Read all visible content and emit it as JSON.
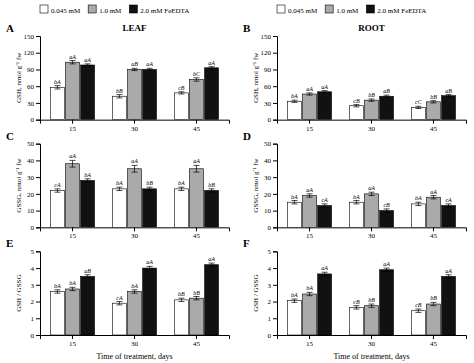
{
  "chart_data": [
    {
      "type": "bar",
      "title": "LEAF",
      "annotations": [
        "A"
      ],
      "ylabel": "GSH, nmol g⁻¹ fw",
      "categories": [
        "15",
        "30",
        "45"
      ],
      "ylim": [
        0,
        150
      ],
      "yticks": [
        0,
        30,
        60,
        90,
        120,
        150
      ],
      "grid": false,
      "legend": "top",
      "series": [
        {
          "name": "0.045 mM",
          "color": "white",
          "values": [
            58,
            42,
            48
          ],
          "errors": [
            3,
            3,
            2
          ],
          "annotations": [
            "bA",
            "bB",
            "cB"
          ]
        },
        {
          "name": "1.0 mM",
          "color": "#aaaaaa",
          "values": [
            103,
            90,
            72
          ],
          "errors": [
            3,
            2,
            3
          ],
          "annotations": [
            "aA",
            "aB",
            "bC"
          ]
        },
        {
          "name": "2.0 mM FeEDTA",
          "color": "#111111",
          "values": [
            98,
            90,
            93
          ],
          "errors": [
            2,
            2,
            2
          ],
          "annotations": [
            "aA",
            "aA",
            "aA"
          ]
        }
      ]
    },
    {
      "type": "bar",
      "title": "ROOT",
      "annotations": [
        "B"
      ],
      "ylabel": "GSH, nmol g⁻¹ fw",
      "categories": [
        "15",
        "30",
        "45"
      ],
      "ylim": [
        0,
        150
      ],
      "yticks": [
        0,
        30,
        60,
        90,
        120,
        150
      ],
      "grid": false,
      "legend": "top",
      "series": [
        {
          "name": "0.045 mM",
          "color": "white",
          "values": [
            33,
            25,
            22
          ],
          "errors": [
            2,
            2,
            2
          ],
          "annotations": [
            "bA",
            "cB",
            "cC"
          ]
        },
        {
          "name": "1.0 mM",
          "color": "#aaaaaa",
          "values": [
            46,
            35,
            32
          ],
          "errors": [
            2,
            2,
            2
          ],
          "annotations": [
            "aA",
            "bB",
            "bB"
          ]
        },
        {
          "name": "2.0 mM FeEDTA",
          "color": "#111111",
          "values": [
            50,
            42,
            43
          ],
          "errors": [
            2,
            2,
            2
          ],
          "annotations": [
            "aA",
            "aB",
            "aB"
          ]
        }
      ]
    },
    {
      "type": "bar",
      "annotations": [
        "C"
      ],
      "ylabel": "GSSG, nmol g⁻¹ fw",
      "categories": [
        "15",
        "30",
        "45"
      ],
      "ylim": [
        0,
        50
      ],
      "yticks": [
        0,
        10,
        20,
        30,
        40,
        50
      ],
      "grid": false,
      "series": [
        {
          "name": "0.045 mM",
          "color": "white",
          "values": [
            22,
            23,
            23
          ],
          "errors": [
            1,
            1,
            1
          ],
          "annotations": [
            "cA",
            "bA",
            "bA"
          ]
        },
        {
          "name": "1.0 mM",
          "color": "#aaaaaa",
          "values": [
            38,
            35,
            35
          ],
          "errors": [
            2,
            2,
            2
          ],
          "annotations": [
            "aA",
            "aA",
            "aA"
          ]
        },
        {
          "name": "2.0 mM FeEDTA",
          "color": "#111111",
          "values": [
            28,
            23,
            22
          ],
          "errors": [
            1,
            1,
            1
          ],
          "annotations": [
            "bA",
            "bB",
            "bB"
          ]
        }
      ]
    },
    {
      "type": "bar",
      "annotations": [
        "D"
      ],
      "ylabel": "GSSG, nmol g⁻¹ fw",
      "categories": [
        "15",
        "30",
        "45"
      ],
      "ylim": [
        0,
        50
      ],
      "yticks": [
        0,
        10,
        20,
        30,
        40,
        50
      ],
      "grid": false,
      "series": [
        {
          "name": "0.045 mM",
          "color": "white",
          "values": [
            15,
            15,
            14
          ],
          "errors": [
            1,
            1,
            1
          ],
          "annotations": [
            "bA",
            "bA",
            "bA"
          ]
        },
        {
          "name": "1.0 mM",
          "color": "#aaaaaa",
          "values": [
            19,
            20,
            18
          ],
          "errors": [
            1,
            1,
            1
          ],
          "annotations": [
            "aA",
            "aA",
            "aA"
          ]
        },
        {
          "name": "2.0 mM FeEDTA",
          "color": "#111111",
          "values": [
            13,
            10,
            13
          ],
          "errors": [
            1,
            1,
            1
          ],
          "annotations": [
            "cA",
            "cB",
            "cA"
          ]
        }
      ]
    },
    {
      "type": "bar",
      "annotations": [
        "E"
      ],
      "ylabel": "GSH / GSSG",
      "xlabel": "Time of treatment, days",
      "categories": [
        "15",
        "30",
        "45"
      ],
      "ylim": [
        0,
        5
      ],
      "yticks": [
        0,
        1,
        2,
        3,
        4,
        5
      ],
      "grid": false,
      "series": [
        {
          "name": "0.045 mM",
          "color": "white",
          "values": [
            2.6,
            1.9,
            2.1
          ],
          "errors": [
            0.1,
            0.1,
            0.1
          ],
          "annotations": [
            "bA",
            "cA",
            "bB"
          ]
        },
        {
          "name": "1.0 mM",
          "color": "#aaaaaa",
          "values": [
            2.75,
            2.6,
            2.2
          ],
          "errors": [
            0.1,
            0.1,
            0.1
          ],
          "annotations": [
            "bA",
            "bA",
            "bB"
          ]
        },
        {
          "name": "2.0 mM FeEDTA",
          "color": "#111111",
          "values": [
            3.5,
            4.0,
            4.2
          ],
          "errors": [
            0.1,
            0.1,
            0.1
          ],
          "annotations": [
            "aB",
            "aA",
            "aA"
          ]
        }
      ]
    },
    {
      "type": "bar",
      "annotations": [
        "F"
      ],
      "ylabel": "GSH / GSSG",
      "xlabel": "Time of treatment, days",
      "categories": [
        "15",
        "30",
        "45"
      ],
      "ylim": [
        0,
        5
      ],
      "yticks": [
        0,
        1,
        2,
        3,
        4,
        5
      ],
      "grid": false,
      "series": [
        {
          "name": "0.045 mM",
          "color": "white",
          "values": [
            2.05,
            1.65,
            1.45
          ],
          "errors": [
            0.1,
            0.1,
            0.1
          ],
          "annotations": [
            "bA",
            "cB",
            "cB"
          ]
        },
        {
          "name": "1.0 mM",
          "color": "#aaaaaa",
          "values": [
            2.45,
            1.75,
            1.85
          ],
          "errors": [
            0.1,
            0.1,
            0.1
          ],
          "annotations": [
            "bA",
            "bB",
            "bB"
          ]
        },
        {
          "name": "2.0 mM FeEDTA",
          "color": "#111111",
          "values": [
            3.65,
            3.9,
            3.5
          ],
          "errors": [
            0.1,
            0.1,
            0.1
          ],
          "annotations": [
            "aA",
            "aA",
            "aA"
          ]
        }
      ]
    }
  ]
}
